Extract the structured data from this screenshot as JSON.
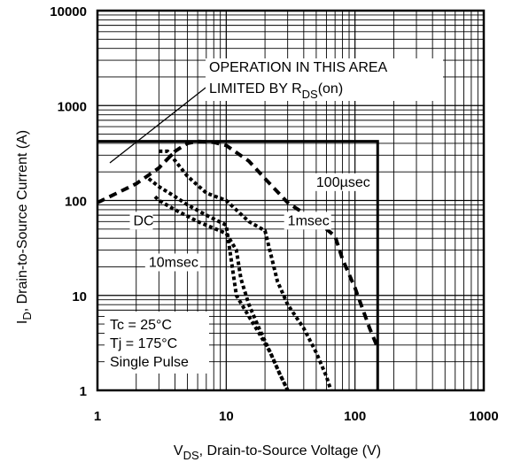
{
  "chart_data": {
    "type": "line",
    "title": "",
    "xlabel_main": "V",
    "xlabel_sub": "DS",
    "xlabel_rest": ", Drain-to-Source Voltage (V)",
    "ylabel_main": "I",
    "ylabel_sub": "D",
    "ylabel_rest": ",  Drain-to-Source Current (A)",
    "x_scale": "log",
    "y_scale": "log",
    "xlim": [
      1,
      1000
    ],
    "ylim": [
      1,
      10000
    ],
    "x_ticks": [
      "1",
      "10",
      "100",
      "1000"
    ],
    "y_ticks": [
      "1",
      "10",
      "100",
      "1000",
      "10000"
    ],
    "grid": true,
    "annotation_line1": "OPERATION IN THIS AREA",
    "annotation_line2": "LIMITED BY R",
    "annotation_sub": "DS",
    "annotation_paren": "(on)",
    "conditions": [
      "Tc = 25°C",
      "Tj = 175°C",
      "Single Pulse"
    ],
    "limit_box": {
      "x_max": 150,
      "y_max": 420
    },
    "series": [
      {
        "name": "100µsec",
        "style": "dashed",
        "x": [
          1,
          2,
          3,
          4,
          5,
          6,
          8,
          10,
          15,
          20,
          30,
          50,
          60,
          70,
          80,
          100,
          130,
          150
        ],
        "y": [
          95,
          150,
          220,
          330,
          400,
          420,
          410,
          380,
          260,
          170,
          95,
          60,
          50,
          42,
          24,
          12,
          4.5,
          2.8
        ]
      },
      {
        "name": "1msec",
        "style": "dotted",
        "x": [
          3,
          3.5,
          5,
          7,
          10,
          15,
          20,
          25,
          30,
          40,
          50,
          60,
          65
        ],
        "y": [
          330,
          330,
          180,
          120,
          100,
          60,
          48,
          14,
          8,
          4.5,
          2.5,
          1.4,
          1
        ]
      },
      {
        "name": "DC",
        "style": "dotted",
        "x": [
          2.5,
          3,
          4,
          5,
          7,
          10,
          12,
          15,
          18,
          22,
          26,
          30
        ],
        "y": [
          170,
          140,
          110,
          90,
          70,
          55,
          10,
          6,
          4,
          2.5,
          1.5,
          1
        ]
      },
      {
        "name": "10msec",
        "style": "dotted",
        "x": [
          2.8,
          3,
          4,
          6,
          10,
          12,
          13,
          15,
          18,
          22,
          26,
          30
        ],
        "y": [
          110,
          100,
          80,
          60,
          45,
          30,
          15,
          8,
          4.5,
          2.5,
          1.5,
          1
        ]
      }
    ],
    "series_labels": [
      {
        "text": "100µsec",
        "x": 50,
        "y": 140
      },
      {
        "text": "1msec",
        "x": 30,
        "y": 55
      },
      {
        "text": "DC",
        "x": 1.9,
        "y": 55
      },
      {
        "text": "10msec",
        "x": 2.5,
        "y": 20
      }
    ]
  }
}
